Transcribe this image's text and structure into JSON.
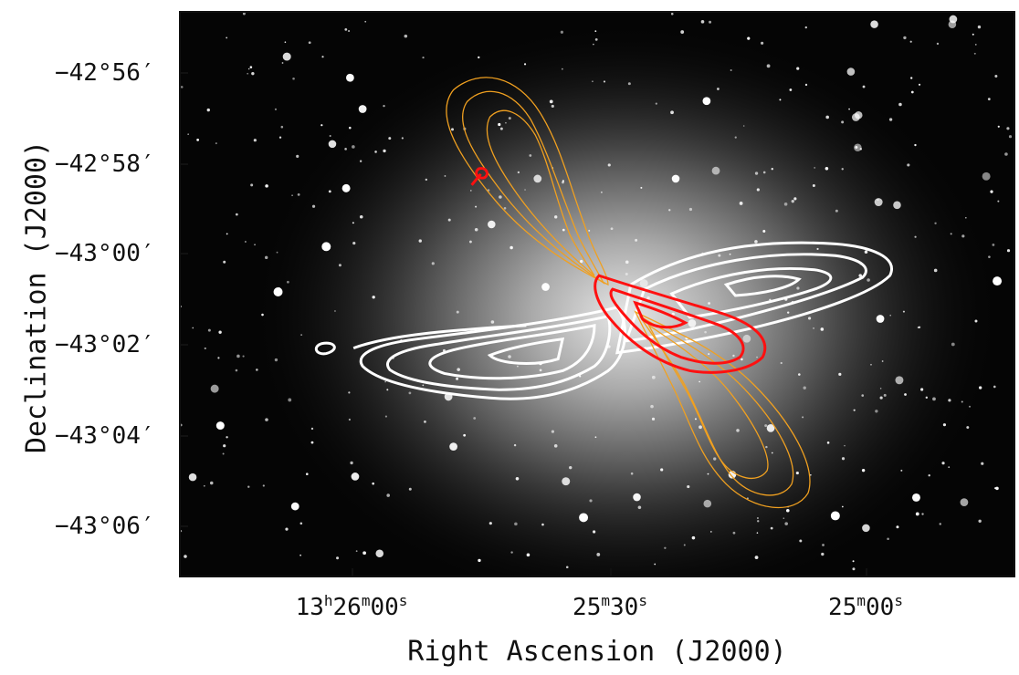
{
  "axes": {
    "xlabel": "Right Ascension (J2000)",
    "ylabel": "Declination (J2000)",
    "yticks": [
      "−42°56′",
      "−42°58′",
      "−43°00′",
      "−43°02′",
      "−43°04′",
      "−43°06′"
    ],
    "xticks": [
      {
        "h": "13",
        "hsup": "h",
        "m": "26",
        "msup": "m",
        "s": "00",
        "ssup": "s"
      },
      {
        "h": "",
        "hsup": "",
        "m": "25",
        "msup": "m",
        "s": "30",
        "ssup": "s"
      },
      {
        "h": "",
        "hsup": "",
        "m": "25",
        "msup": "m",
        "s": "00",
        "ssup": "s"
      }
    ]
  },
  "colors": {
    "white_contours": "#ffffff",
    "orange_contours": "#f0a020",
    "red_contours": "#ff1010"
  }
}
